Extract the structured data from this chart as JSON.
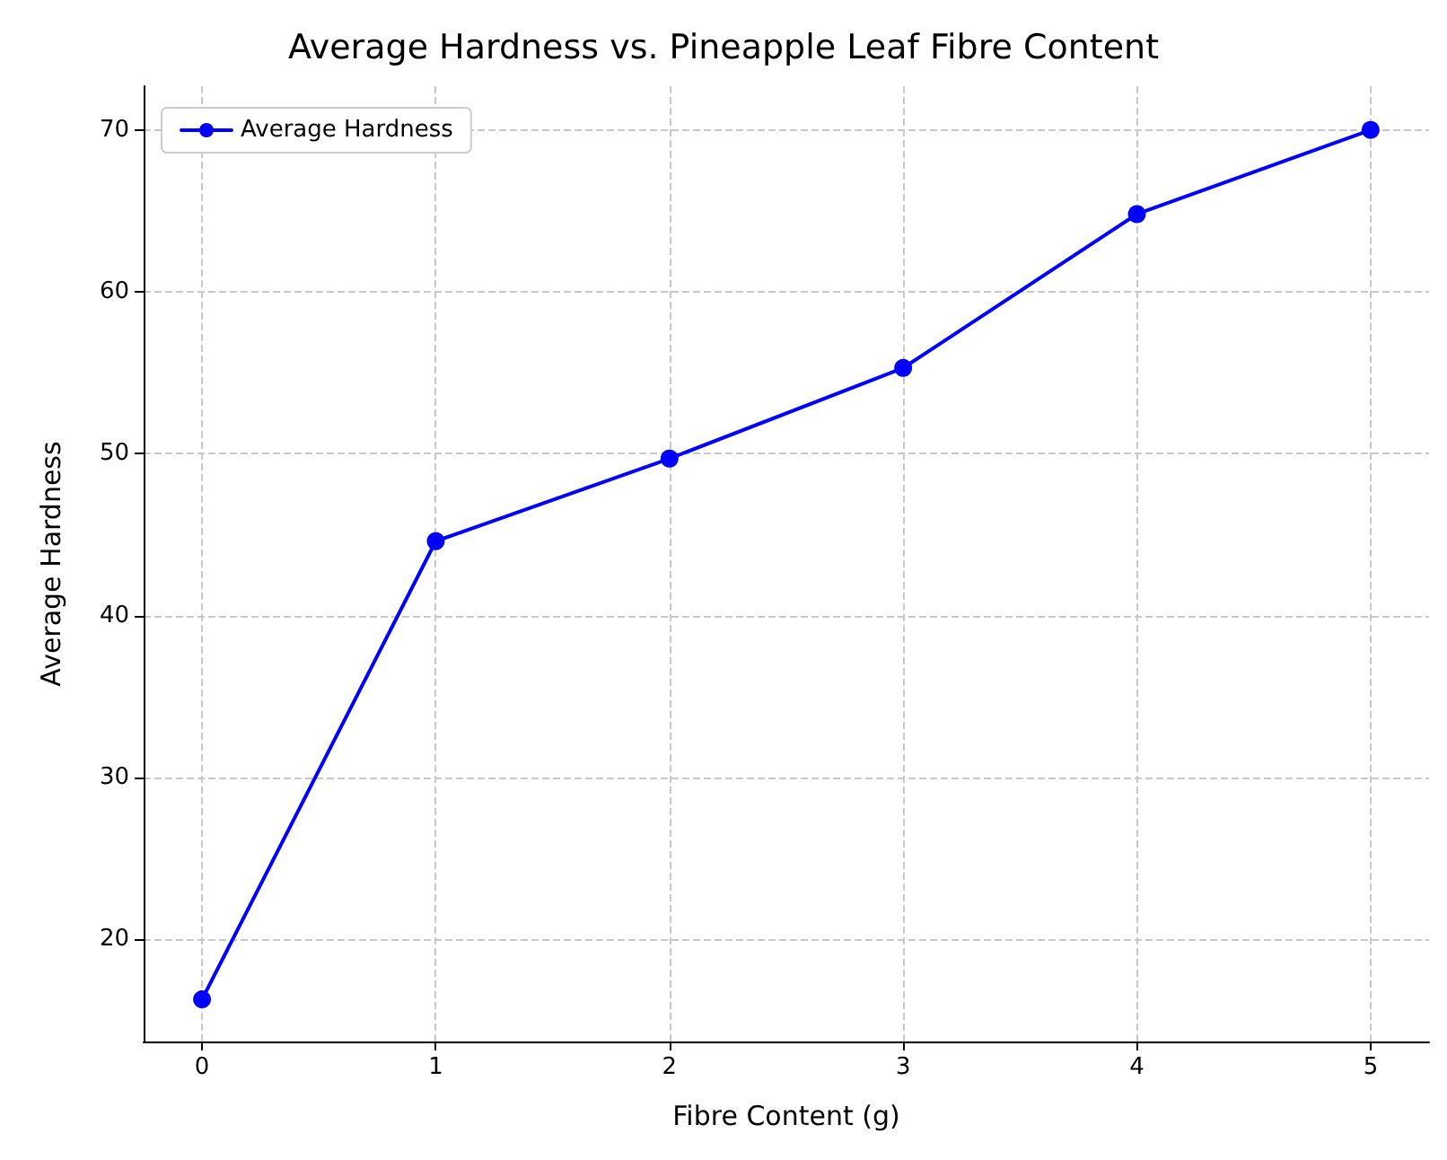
{
  "chart_data": {
    "type": "line",
    "title": "Average Hardness vs. Pineapple Leaf Fibre Content",
    "xlabel": "Fibre Content (g)",
    "ylabel": "Average Hardness",
    "x": [
      0,
      1,
      2,
      3,
      4,
      5
    ],
    "series": [
      {
        "name": "Average Hardness",
        "color": "#0000ff",
        "values": [
          16.3,
          44.6,
          49.7,
          55.3,
          64.8,
          70.0
        ]
      }
    ],
    "xlim": [
      -0.25,
      5.25
    ],
    "xticks": [
      0,
      1,
      2,
      3,
      4,
      5
    ],
    "ylim": [
      13.7,
      72.7
    ],
    "yticks": [
      20,
      30,
      40,
      50,
      60,
      70
    ],
    "grid": true,
    "legend": "top left",
    "marker": "circle",
    "line_style": "solid"
  }
}
